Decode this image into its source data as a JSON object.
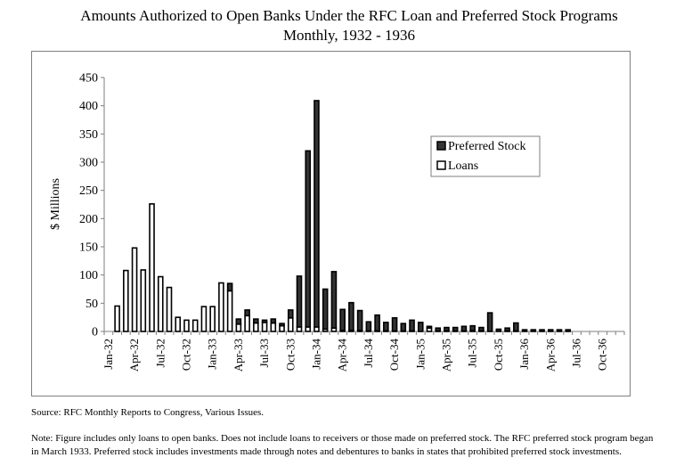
{
  "chart_data": {
    "type": "bar",
    "stacked": true,
    "title": "Amounts Authorized to Open Banks Under the RFC Loan and Preferred Stock Programs",
    "subtitle": "Monthly, 1932 - 1936",
    "xlabel": "",
    "ylabel": "$ Millions",
    "ylim": [
      0,
      450
    ],
    "yticks": [
      0,
      50,
      100,
      150,
      200,
      250,
      300,
      350,
      400,
      450
    ],
    "xtick_labels": [
      "Jan-32",
      "Apr-32",
      "Jul-32",
      "Oct-32",
      "Jan-33",
      "Apr-33",
      "Jul-33",
      "Oct-33",
      "Jan-34",
      "Apr-34",
      "Jul-34",
      "Oct-34",
      "Jan-35",
      "Apr-35",
      "Jul-35",
      "Oct-35",
      "Jan-36",
      "Apr-36",
      "Jul-36",
      "Oct-36"
    ],
    "legend_position": "upper-right",
    "categories": [
      "Jan-32",
      "Feb-32",
      "Mar-32",
      "Apr-32",
      "May-32",
      "Jun-32",
      "Jul-32",
      "Aug-32",
      "Sep-32",
      "Oct-32",
      "Nov-32",
      "Dec-32",
      "Jan-33",
      "Feb-33",
      "Mar-33",
      "Apr-33",
      "May-33",
      "Jun-33",
      "Jul-33",
      "Aug-33",
      "Sep-33",
      "Oct-33",
      "Nov-33",
      "Dec-33",
      "Jan-34",
      "Feb-34",
      "Mar-34",
      "Apr-34",
      "May-34",
      "Jun-34",
      "Jul-34",
      "Aug-34",
      "Sep-34",
      "Oct-34",
      "Nov-34",
      "Dec-34",
      "Jan-35",
      "Feb-35",
      "Mar-35",
      "Apr-35",
      "May-35",
      "Jun-35",
      "Jul-35",
      "Aug-35",
      "Sep-35",
      "Oct-35",
      "Nov-35",
      "Dec-35",
      "Jan-36",
      "Feb-36",
      "Mar-36",
      "Apr-36",
      "May-36",
      "Jun-36",
      "Jul-36",
      "Aug-36",
      "Sep-36",
      "Oct-36",
      "Nov-36",
      "Dec-36"
    ],
    "series": [
      {
        "name": "Loans",
        "color": "#ffffff",
        "values": [
          0,
          45,
          108,
          148,
          109,
          226,
          97,
          78,
          25,
          20,
          20,
          44,
          44,
          86,
          72,
          13,
          28,
          15,
          16,
          15,
          10,
          24,
          8,
          8,
          8,
          4,
          6,
          2,
          2,
          2,
          1,
          1,
          1,
          1,
          1,
          1,
          0,
          6,
          1,
          1,
          1,
          1,
          2,
          1,
          0,
          0,
          1,
          1,
          0,
          0,
          0,
          0,
          0,
          0,
          0,
          0,
          0,
          0,
          0,
          0
        ]
      },
      {
        "name": "Preferred Stock",
        "color": "#1a1a1a",
        "values": [
          0,
          0,
          0,
          0,
          0,
          0,
          0,
          0,
          0,
          0,
          0,
          0,
          0,
          0,
          13,
          9,
          10,
          7,
          4,
          7,
          4,
          14,
          90,
          312,
          401,
          71,
          100,
          37,
          49,
          35,
          16,
          28,
          15,
          23,
          13,
          19,
          16,
          3,
          5,
          6,
          6,
          8,
          8,
          6,
          33,
          4,
          5,
          14,
          3,
          3,
          3,
          3,
          3,
          3,
          0,
          0,
          0,
          0,
          0,
          0
        ]
      }
    ]
  },
  "legend": {
    "preferred_label": "Preferred Stock",
    "loans_label": "Loans"
  },
  "footer": {
    "source": "Source: RFC Monthly Reports to Congress, Various Issues.",
    "note": "Note: Figure includes only loans to open banks. Does not include loans to receivers or those made on preferred stock. The RFC preferred stock program began in March 1933. Preferred stock includes investments made through notes and debentures to banks in states that prohibited preferred stock investments."
  }
}
